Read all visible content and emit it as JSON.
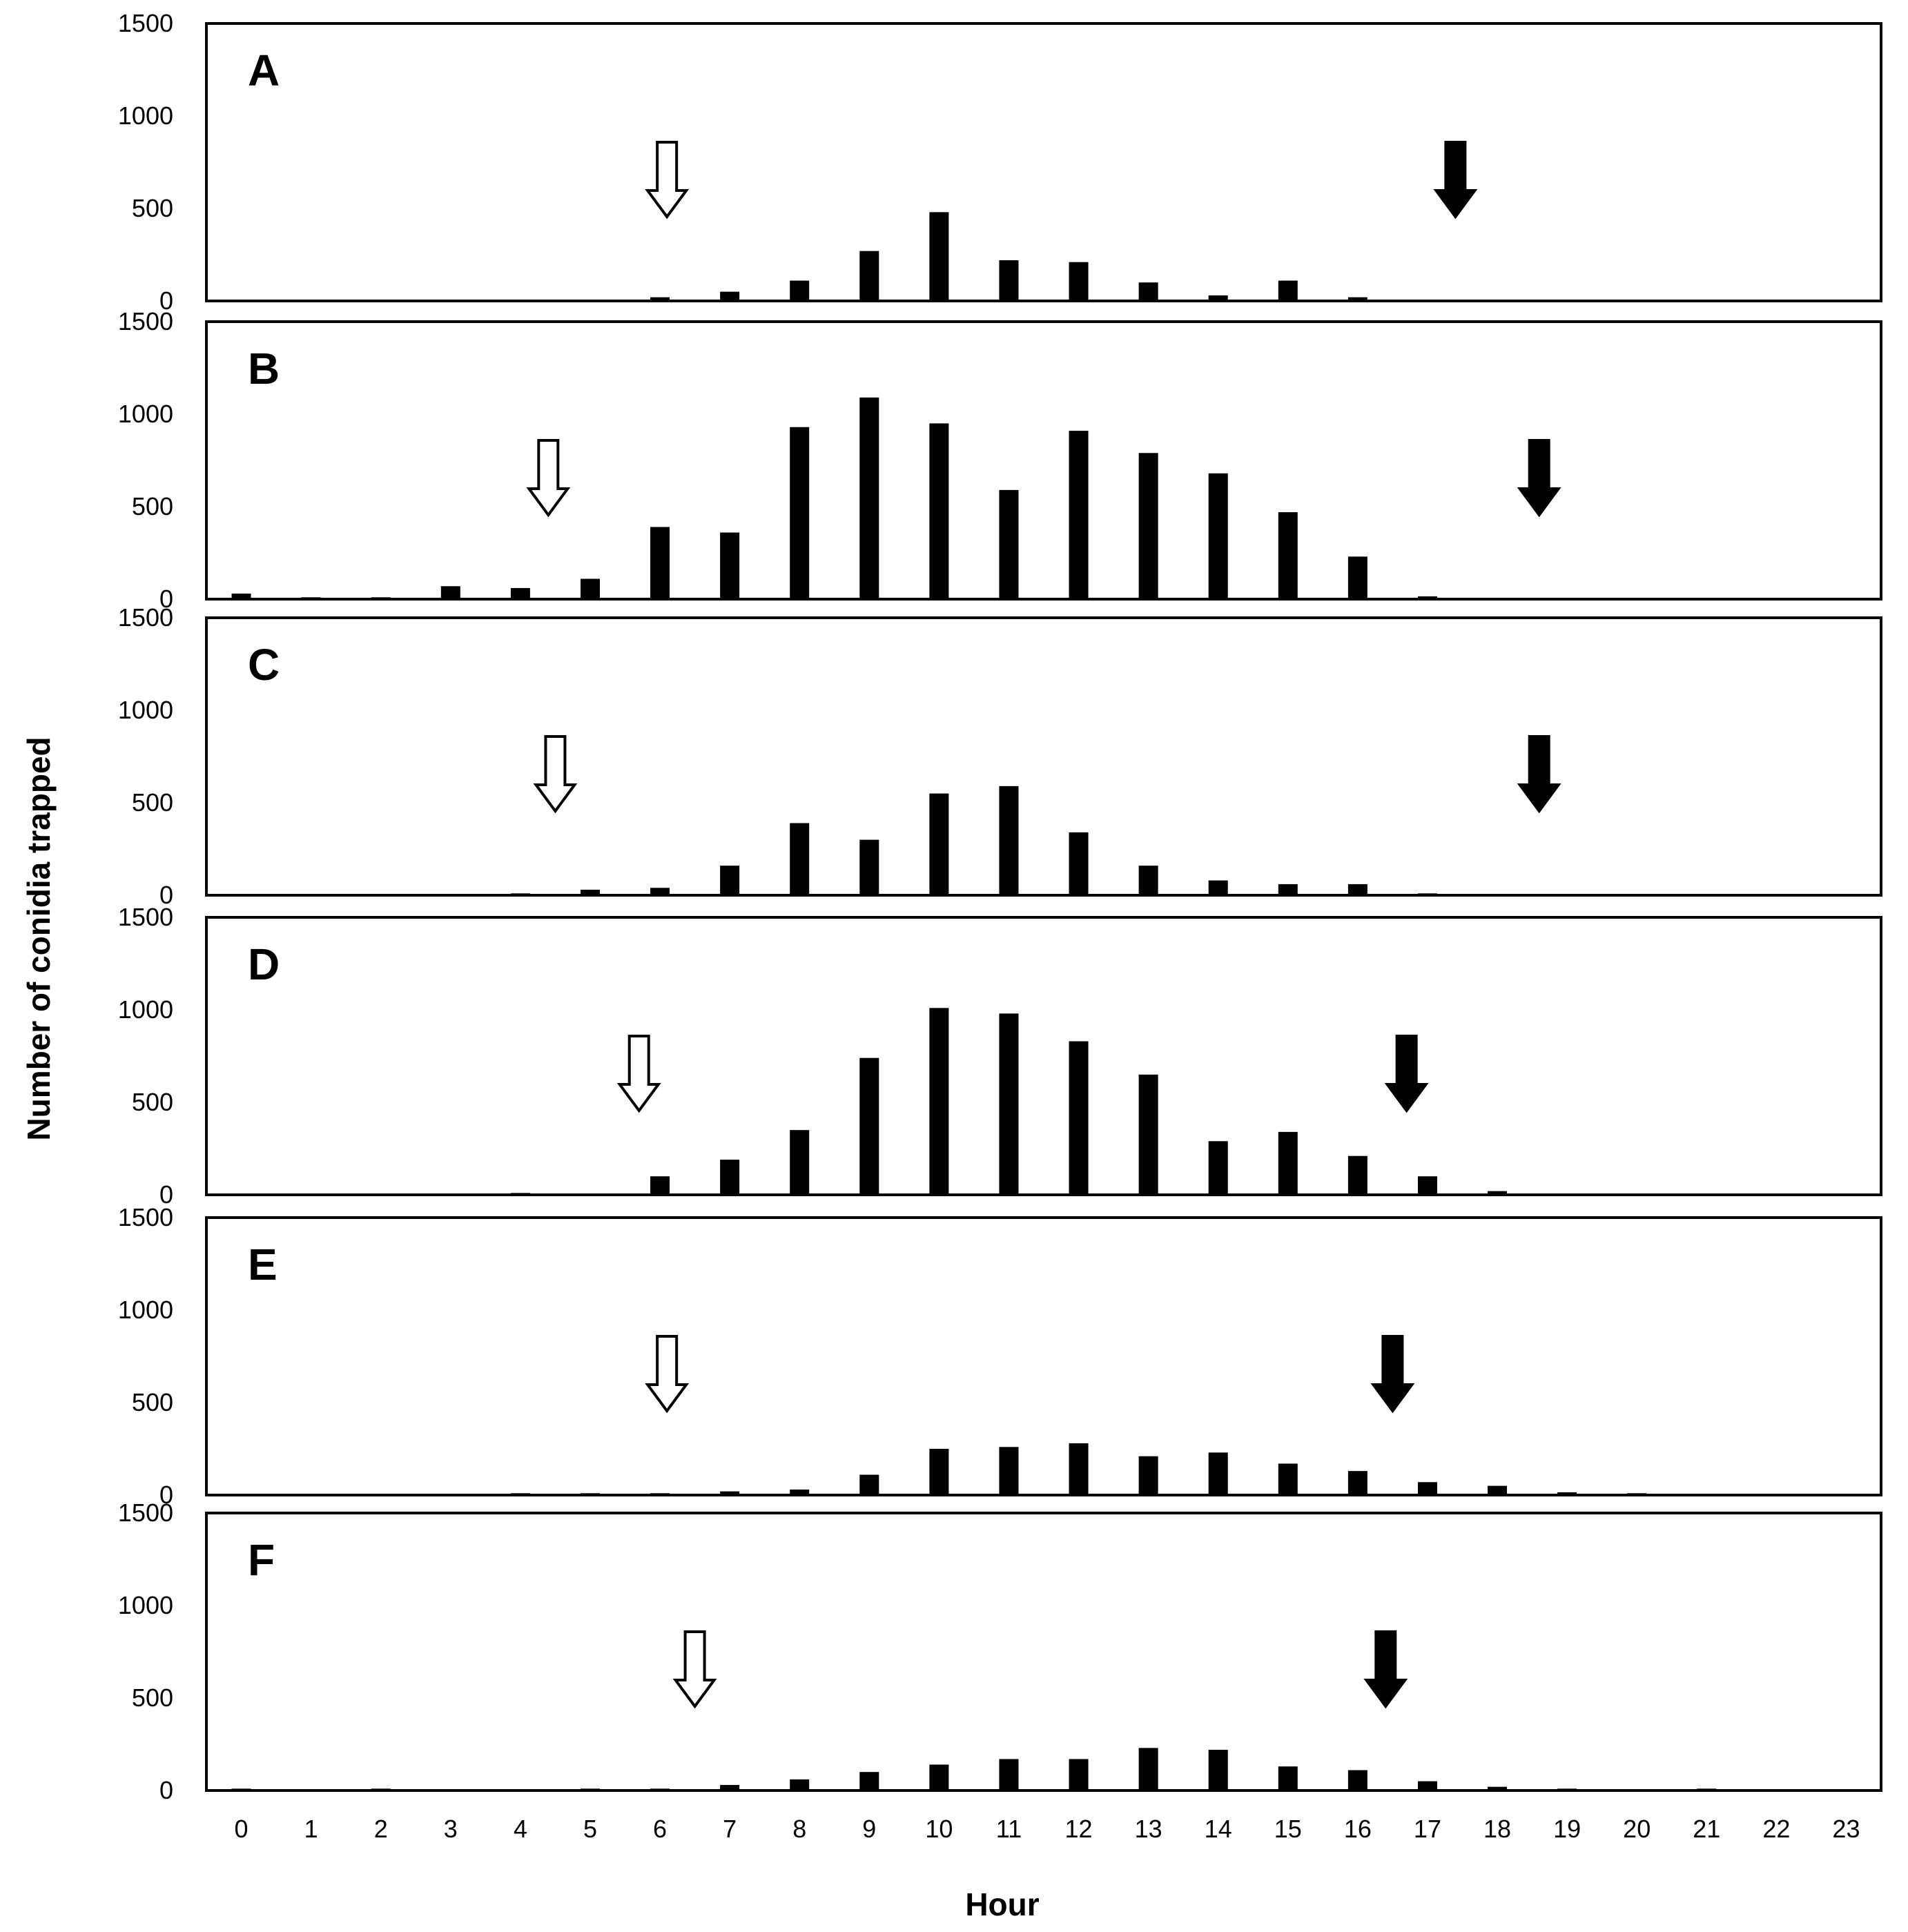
{
  "chart_data": {
    "type": "bar",
    "xlabel": "Hour",
    "ylabel": "Number of conidia trapped",
    "ylim": [
      0,
      1500
    ],
    "yticks": [
      0,
      500,
      1000,
      1500
    ],
    "categories": [
      "0",
      "1",
      "2",
      "3",
      "4",
      "5",
      "6",
      "7",
      "8",
      "9",
      "10",
      "11",
      "12",
      "13",
      "14",
      "15",
      "16",
      "17",
      "18",
      "19",
      "20",
      "21",
      "22",
      "23"
    ],
    "colors": {
      "bar": "#000000",
      "frame": "#000000",
      "open_arrow": "#ffffff",
      "filled_arrow": "#000000"
    },
    "legend": "none",
    "grid": false,
    "panels": [
      {
        "label": "A",
        "values": [
          0,
          0,
          0,
          0,
          0,
          0,
          20,
          50,
          110,
          270,
          480,
          220,
          210,
          100,
          30,
          110,
          20,
          0,
          0,
          0,
          0,
          0,
          0,
          0
        ],
        "open_arrow_hour": 6.1,
        "filled_arrow_hour": 17.4
      },
      {
        "label": "B",
        "values": [
          30,
          10,
          10,
          70,
          60,
          110,
          390,
          360,
          930,
          1090,
          950,
          590,
          910,
          790,
          680,
          470,
          230,
          15,
          0,
          0,
          0,
          0,
          0,
          0
        ],
        "open_arrow_hour": 4.4,
        "filled_arrow_hour": 18.6
      },
      {
        "label": "C",
        "values": [
          0,
          0,
          0,
          0,
          10,
          30,
          40,
          160,
          390,
          300,
          550,
          590,
          340,
          160,
          80,
          60,
          60,
          10,
          0,
          0,
          0,
          0,
          0,
          0
        ],
        "open_arrow_hour": 4.5,
        "filled_arrow_hour": 18.6
      },
      {
        "label": "D",
        "values": [
          0,
          0,
          0,
          0,
          10,
          0,
          100,
          190,
          350,
          740,
          1010,
          980,
          830,
          650,
          290,
          340,
          210,
          100,
          20,
          0,
          0,
          0,
          0,
          0
        ],
        "open_arrow_hour": 5.7,
        "filled_arrow_hour": 16.7
      },
      {
        "label": "E",
        "values": [
          0,
          0,
          0,
          0,
          10,
          10,
          10,
          20,
          30,
          110,
          250,
          260,
          280,
          210,
          230,
          170,
          130,
          70,
          50,
          15,
          10,
          0,
          0,
          0
        ],
        "open_arrow_hour": 6.1,
        "filled_arrow_hour": 16.5
      },
      {
        "label": "F",
        "values": [
          10,
          0,
          10,
          0,
          0,
          10,
          10,
          30,
          60,
          100,
          140,
          170,
          170,
          230,
          220,
          130,
          110,
          50,
          20,
          10,
          0,
          10,
          0,
          0
        ],
        "open_arrow_hour": 6.5,
        "filled_arrow_hour": 16.4
      }
    ]
  }
}
